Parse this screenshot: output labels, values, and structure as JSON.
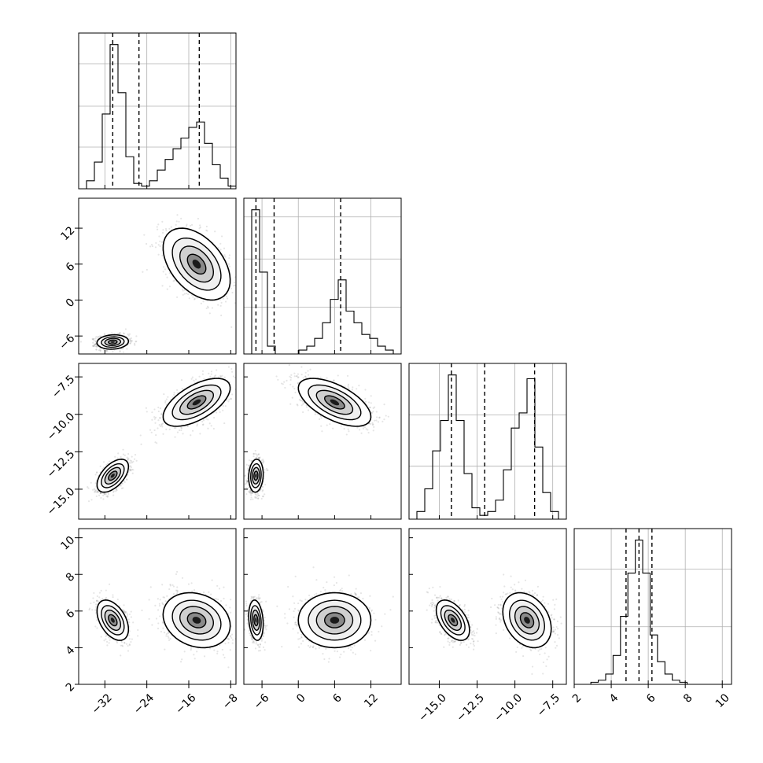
{
  "chart_data": {
    "type": "corner",
    "parameters": [
      {
        "index": 0,
        "range": [
          -37,
          -7
        ],
        "ticks": [
          -32,
          -24,
          -16,
          -8
        ],
        "tick_labels": [
          "−32",
          "−24",
          "−16",
          "−8"
        ],
        "quantiles": [
          -30.5,
          -25.5,
          -14.0
        ],
        "hist_bins": [
          -37,
          -35.5,
          -34,
          -32.5,
          -31,
          -29.5,
          -28,
          -26.5,
          -25,
          -23.5,
          -22,
          -20.5,
          -19,
          -17.5,
          -16,
          -14.5,
          -13,
          -11.5,
          -10,
          -8.5,
          -7
        ],
        "hist_counts": [
          0,
          3,
          10,
          28,
          54,
          36,
          12,
          2,
          1,
          3,
          7,
          11,
          15,
          19,
          23,
          25,
          17,
          9,
          4,
          1
        ]
      },
      {
        "index": 1,
        "range": [
          -9,
          17
        ],
        "ticks": [
          -6,
          0,
          6,
          12
        ],
        "tick_labels": [
          "−6",
          "0",
          "6",
          "12"
        ],
        "quantiles": [
          -7.0,
          -4.0,
          7.0
        ],
        "hist_bins": [
          -9,
          -7.7,
          -6.4,
          -5.1,
          -3.8,
          -2.5,
          -1.2,
          0.1,
          1.4,
          2.7,
          4.0,
          5.3,
          6.6,
          7.9,
          9.2,
          10.5,
          11.8,
          13.1,
          14.4,
          15.7,
          17
        ],
        "hist_counts": [
          0,
          37,
          21,
          2,
          0,
          0,
          0,
          1,
          2,
          4,
          8,
          14,
          19,
          11,
          8,
          5,
          4,
          2,
          1,
          0
        ]
      },
      {
        "index": 2,
        "range": [
          -17,
          -6.6
        ],
        "ticks": [
          -15.0,
          -12.5,
          -10.0,
          -7.5
        ],
        "tick_labels": [
          "−15.0",
          "−12.5",
          "−10.0",
          "−7.5"
        ],
        "quantiles": [
          -14.2,
          -12.0,
          -8.7
        ],
        "hist_bins": [
          -17,
          -16.48,
          -15.96,
          -15.44,
          -14.92,
          -14.4,
          -13.88,
          -13.36,
          -12.84,
          -12.32,
          -11.8,
          -11.28,
          -10.76,
          -10.24,
          -9.72,
          -9.2,
          -8.68,
          -8.16,
          -7.64,
          -7.12,
          -6.6
        ],
        "hist_counts": [
          0,
          2,
          8,
          18,
          26,
          38,
          26,
          12,
          3,
          1,
          2,
          5,
          13,
          24,
          28,
          37,
          19,
          7,
          2,
          0
        ]
      },
      {
        "index": 3,
        "range": [
          2,
          10.5
        ],
        "ticks": [
          2,
          4,
          6,
          8,
          10
        ],
        "tick_labels": [
          "2",
          "4",
          "6",
          "8",
          "10"
        ],
        "quantiles": [
          4.8,
          5.5,
          6.2
        ],
        "hist_bins": [
          2.5,
          2.9,
          3.3,
          3.7,
          4.1,
          4.5,
          4.9,
          5.3,
          5.7,
          6.1,
          6.5,
          6.9,
          7.3,
          7.7,
          8.1,
          8.5,
          8.9,
          9.3
        ],
        "hist_counts": [
          0,
          1,
          2,
          5,
          14,
          33,
          54,
          70,
          54,
          24,
          11,
          5,
          2,
          1,
          0,
          0,
          0
        ]
      }
    ],
    "hist_grid_lines": [
      [
        53,
        108
      ],
      [
        0.52,
        0.39,
        0.85
      ],
      [
        0.25,
        0.69
      ],
      [
        0.38,
        0.72
      ]
    ],
    "modes": [
      {
        "mean": [
          -30.5,
          -7.0,
          -14.1,
          5.5
        ],
        "sd": [
          1.5,
          0.6,
          0.55,
          0.55
        ],
        "rho": {
          "0-1": 0.1,
          "0-2": 0.55,
          "0-3": -0.45,
          "1-2": 0.1,
          "1-3": -0.2,
          "2-3": -0.5
        },
        "weight": 0.5
      },
      {
        "mean": [
          -14.5,
          6.0,
          -9.2,
          5.5
        ],
        "sd": [
          3.2,
          3.0,
          0.8,
          0.75
        ],
        "rho": {
          "0-1": -0.45,
          "0-2": 0.6,
          "0-3": -0.2,
          "1-2": -0.6,
          "1-3": 0.0,
          "2-3": -0.3
        },
        "weight": 0.5
      }
    ]
  }
}
